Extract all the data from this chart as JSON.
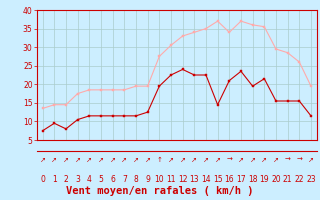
{
  "x": [
    0,
    1,
    2,
    3,
    4,
    5,
    6,
    7,
    8,
    9,
    10,
    11,
    12,
    13,
    14,
    15,
    16,
    17,
    18,
    19,
    20,
    21,
    22,
    23
  ],
  "wind_avg": [
    7.5,
    9.5,
    8.0,
    10.5,
    11.5,
    11.5,
    11.5,
    11.5,
    11.5,
    12.5,
    19.5,
    22.5,
    24.0,
    22.5,
    22.5,
    14.5,
    21.0,
    23.5,
    19.5,
    21.5,
    15.5,
    15.5,
    15.5,
    11.5
  ],
  "wind_gust": [
    13.5,
    14.5,
    14.5,
    17.5,
    18.5,
    18.5,
    18.5,
    18.5,
    19.5,
    19.5,
    27.5,
    30.5,
    33.0,
    34.0,
    35.0,
    37.0,
    34.0,
    37.0,
    36.0,
    35.5,
    29.5,
    28.5,
    26.0,
    19.5
  ],
  "wind_dirs": [
    "↗",
    "↗",
    "↗",
    "↗",
    "↗",
    "↗",
    "↗",
    "↗",
    "↗",
    "↗",
    "↑",
    "↗",
    "↗",
    "↗",
    "↗",
    "↗",
    "→",
    "↗",
    "↗",
    "↗",
    "↗",
    "→",
    "→",
    "↗"
  ],
  "avg_color": "#cc0000",
  "gust_color": "#ffaaaa",
  "bg_color": "#cceeff",
  "grid_color": "#aacccc",
  "axis_color": "#cc0000",
  "spine_color": "#cc0000",
  "ylim": [
    5,
    40
  ],
  "yticks": [
    5,
    10,
    15,
    20,
    25,
    30,
    35,
    40
  ],
  "xlabel": "Vent moyen/en rafales ( km/h )",
  "tick_fontsize": 5.5,
  "label_fontsize": 7.5,
  "arrow_fontsize": 5
}
